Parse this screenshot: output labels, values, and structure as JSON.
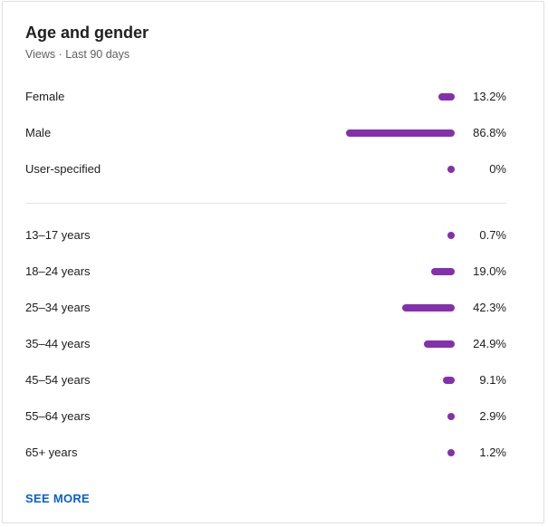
{
  "card": {
    "title": "Age and gender",
    "subtitle": "Views · Last 90 days"
  },
  "accent_color": "#8430ad",
  "link_color": "#065fd4",
  "gender": [
    {
      "label": "Female",
      "value": "13.2%",
      "percent": 13.2
    },
    {
      "label": "Male",
      "value": "86.8%",
      "percent": 86.8
    },
    {
      "label": "User-specified",
      "value": "0%",
      "percent": 0
    }
  ],
  "age": [
    {
      "label": "13–17 years",
      "value": "0.7%",
      "percent": 0.7
    },
    {
      "label": "18–24 years",
      "value": "19.0%",
      "percent": 19.0
    },
    {
      "label": "25–34 years",
      "value": "42.3%",
      "percent": 42.3
    },
    {
      "label": "35–44 years",
      "value": "24.9%",
      "percent": 24.9
    },
    {
      "label": "45–54 years",
      "value": "9.1%",
      "percent": 9.1
    },
    {
      "label": "55–64 years",
      "value": "2.9%",
      "percent": 2.9
    },
    {
      "label": "65+ years",
      "value": "1.2%",
      "percent": 1.2
    }
  ],
  "see_more_label": "SEE MORE"
}
